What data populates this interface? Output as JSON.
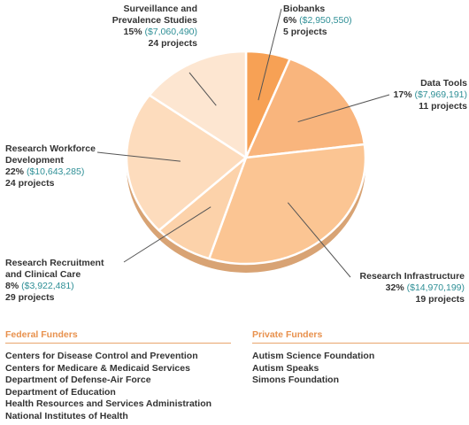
{
  "chart_data": {
    "type": "pie",
    "slices": [
      {
        "label": "Biobanks",
        "percent": 6,
        "percent_label": "6%",
        "amount": "($2,950,550)",
        "projects": "5 projects",
        "color": "#f7a155"
      },
      {
        "label": "Data Tools",
        "percent": 17,
        "percent_label": "17%",
        "amount": "($7,969,191)",
        "projects": "11 projects",
        "color": "#f9b57d"
      },
      {
        "label": "Research Infrastructure",
        "percent": 32,
        "percent_label": "32%",
        "amount": "($14,970,199)",
        "projects": "19 projects",
        "color": "#fbc593"
      },
      {
        "label": "Research Recruitment and Clinical Care",
        "percent": 8,
        "percent_label": "8%",
        "amount": "($3,922,481)",
        "projects": "29 projects",
        "color": "#fcd2aa"
      },
      {
        "label": "Research Workforce Development",
        "percent": 22,
        "percent_label": "22%",
        "amount": "($10,643,285)",
        "projects": "24 projects",
        "color": "#fddcbd"
      },
      {
        "label": "Surveillance and Prevalence Studies",
        "percent": 15,
        "percent_label": "15%",
        "amount": "($7,060,490)",
        "projects": "24 projects",
        "color": "#fde6d1"
      }
    ],
    "label_lines": [
      [
        "Biobanks"
      ],
      [
        "Data Tools"
      ],
      [
        "Research Infrastructure"
      ],
      [
        "Research Recruitment",
        "and Clinical Care"
      ],
      [
        "Research Workforce",
        "Development"
      ],
      [
        "Surveillance and",
        "Prevalence Studies"
      ]
    ]
  },
  "funders": {
    "federal": {
      "heading": "Federal Funders",
      "items": [
        "Centers for Disease Control and Prevention",
        "Centers for Medicare & Medicaid Services",
        "Department of Defense-Air Force",
        "Department of Education",
        "Health Resources and Services Administration",
        "National Institutes of Health"
      ]
    },
    "private": {
      "heading": "Private Funders",
      "items": [
        "Autism Science Foundation",
        "Autism Speaks",
        "Simons Foundation"
      ]
    }
  }
}
